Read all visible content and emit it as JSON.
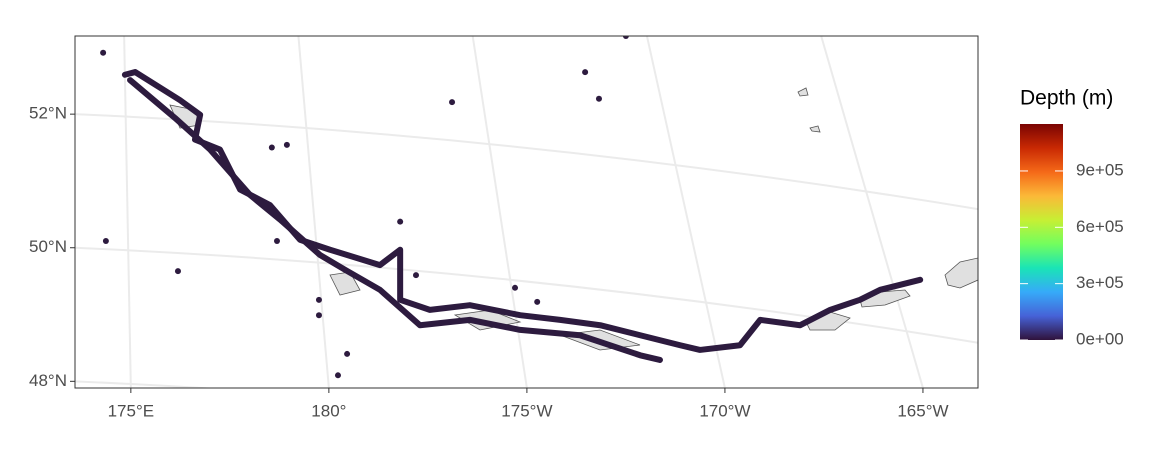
{
  "chart_data": {
    "type": "map",
    "legend_title": "Depth (m)",
    "xlim": [
      173.59,
      196.39
    ],
    "ylim": [
      47.9,
      53.17
    ],
    "xticks": [
      {
        "value": 175,
        "label": "175°E"
      },
      {
        "value": 180,
        "label": "180°"
      },
      {
        "value": 185,
        "label": "175°W"
      },
      {
        "value": 190,
        "label": "170°W"
      },
      {
        "value": 195,
        "label": "165°W"
      }
    ],
    "yticks": [
      {
        "value": 48,
        "label": "48°N"
      },
      {
        "value": 50,
        "label": "50°N"
      },
      {
        "value": 52,
        "label": "52°N"
      }
    ],
    "grid": true,
    "colorbar": {
      "lim": [
        0,
        1150000
      ],
      "ticks": [
        {
          "value": 0,
          "label": "0e+00"
        },
        {
          "value": 300000,
          "label": "3e+05"
        },
        {
          "value": 600000,
          "label": "6e+05"
        },
        {
          "value": 900000,
          "label": "9e+05"
        }
      ],
      "colors": [
        "#30123b",
        "#4662d7",
        "#36aaf9",
        "#1ae4b6",
        "#72fe5e",
        "#c7ef34",
        "#fbb938",
        "#f56918",
        "#c92903",
        "#7a0403"
      ]
    },
    "series": [
      {
        "type": "line",
        "color": "#2d1b3f",
        "x": [
          174.85,
          175.11,
          176.24,
          176.75,
          176.62,
          177.25,
          177.76,
          178.51,
          179.27,
          180.03,
          181.29,
          181.8,
          181.8,
          182.55,
          183.56,
          184.83,
          185.84,
          186.85,
          187.86,
          188.87,
          189.37,
          190.38,
          190.89,
          191.9,
          192.66,
          193.41,
          193.92,
          194.93
        ],
        "values": [
          52.59,
          52.63,
          52.21,
          51.99,
          51.62,
          51.47,
          50.87,
          50.64,
          50.12,
          49.97,
          49.74,
          49.97,
          49.22,
          49.07,
          49.14,
          48.99,
          48.92,
          48.84,
          48.69,
          48.54,
          48.47,
          48.54,
          48.92,
          48.84,
          49.07,
          49.22,
          49.37,
          49.52
        ]
      },
      {
        "type": "line",
        "color": "#2d1b3f",
        "x": [
          174.98,
          176.12,
          177.0,
          178.01,
          178.77,
          179.78,
          180.41,
          181.29,
          182.3,
          183.56,
          184.83,
          186.34,
          187.86,
          188.36
        ],
        "values": [
          52.51,
          51.94,
          51.47,
          50.79,
          50.42,
          49.89,
          49.67,
          49.37,
          48.84,
          48.92,
          48.77,
          48.69,
          48.39,
          48.32
        ]
      },
      {
        "type": "scatter",
        "color": "#2d1b3f",
        "x": [
          174.3,
          174.37,
          176.19,
          183.11,
          186.47,
          186.82,
          187.5,
          178.56,
          178.94,
          178.69,
          179.75,
          179.75,
          180.46,
          180.23,
          184.7,
          185.26,
          182.2,
          181.8
        ],
        "values": [
          52.92,
          50.1,
          49.65,
          52.18,
          52.63,
          52.23,
          53.17,
          51.5,
          51.54,
          50.1,
          49.22,
          48.99,
          48.41,
          48.09,
          49.4,
          49.19,
          49.59,
          50.39
        ]
      }
    ]
  }
}
